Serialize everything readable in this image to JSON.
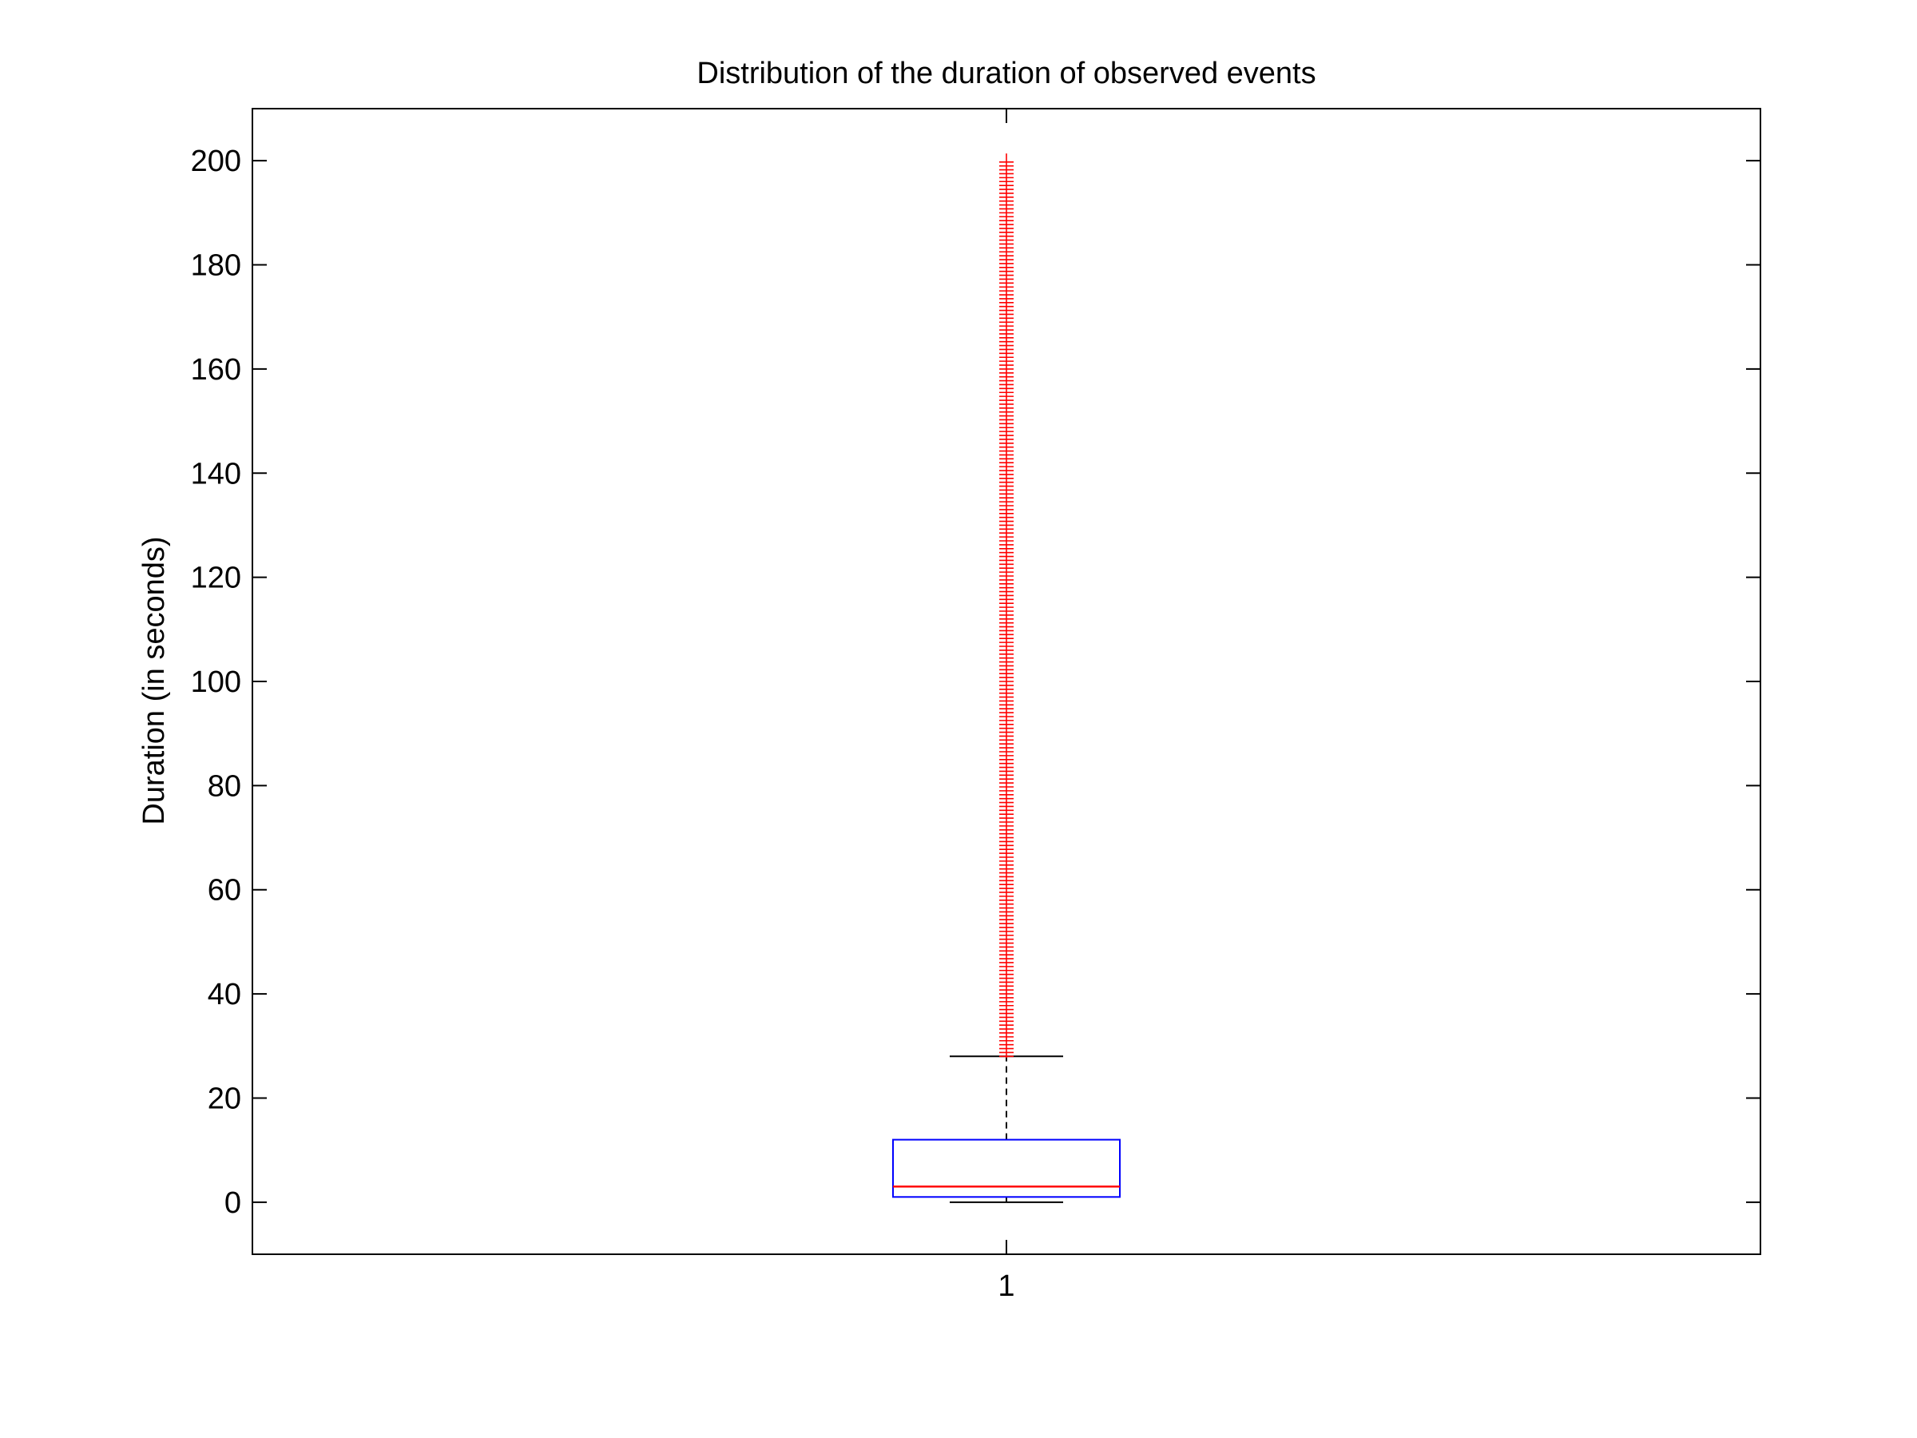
{
  "chart_data": {
    "type": "box",
    "title": "Distribution of the duration of observed events",
    "xlabel": "",
    "ylabel": "Duration (in seconds)",
    "ylim": [
      -10,
      210
    ],
    "yticks": [
      0,
      20,
      40,
      60,
      80,
      100,
      120,
      140,
      160,
      180,
      200
    ],
    "categories": [
      "1"
    ],
    "boxes": [
      {
        "category": "1",
        "min": 0,
        "q1": 1,
        "median": 3,
        "q3": 12,
        "whisker_high": 28,
        "outliers_from": 28,
        "outliers_to": 200
      }
    ],
    "grid": false,
    "colors": {
      "box": "#0000ff",
      "median": "#ff0000",
      "outlier": "#ff0000",
      "whisker": "#000000",
      "axes": "#000000"
    }
  }
}
